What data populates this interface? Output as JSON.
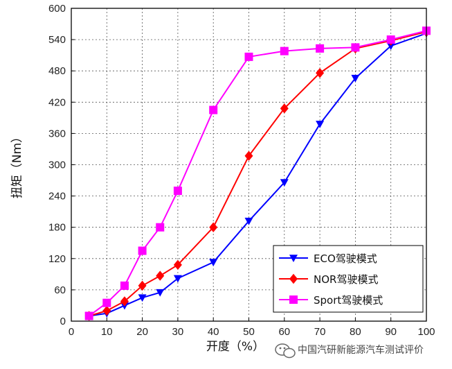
{
  "chart_data": {
    "type": "line",
    "title": "",
    "xlabel": "开度（%）",
    "ylabel": "扭矩（Nm）",
    "xlim": [
      0,
      100
    ],
    "ylim": [
      0,
      600
    ],
    "xticks": [
      0,
      10,
      20,
      30,
      40,
      50,
      60,
      70,
      80,
      90,
      100
    ],
    "yticks": [
      0,
      60,
      120,
      180,
      240,
      300,
      360,
      420,
      480,
      540,
      600
    ],
    "grid": true,
    "legend_position": "bottom-right",
    "x": [
      5,
      10,
      15,
      20,
      25,
      30,
      40,
      50,
      60,
      70,
      80,
      90,
      100
    ],
    "series": [
      {
        "name": "ECO驾驶模式",
        "color": "#0000ff",
        "marker": "triangle-down",
        "values": [
          10,
          15,
          30,
          45,
          55,
          82,
          113,
          192,
          266,
          378,
          466,
          528,
          552
        ]
      },
      {
        "name": "NOR驾驶模式",
        "color": "#ff0000",
        "marker": "diamond",
        "values": [
          10,
          20,
          38,
          68,
          87,
          108,
          180,
          317,
          408,
          476,
          523,
          538,
          555
        ]
      },
      {
        "name": "Sport驾驶模式",
        "color": "#ff00ff",
        "marker": "square",
        "values": [
          10,
          35,
          68,
          135,
          180,
          250,
          405,
          507,
          518,
          523,
          525,
          540,
          557
        ]
      }
    ]
  },
  "watermark": {
    "text": "中国汽研新能源汽车测试评价",
    "icon": "wechat-logo-icon"
  }
}
